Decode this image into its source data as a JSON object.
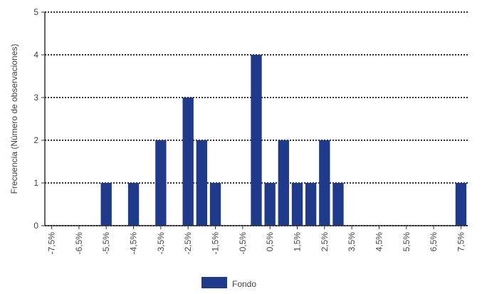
{
  "chart_data": {
    "type": "histogram",
    "ylabel": "Frecuencia (Número de observaciones)",
    "bins": [
      -7.75,
      -7.25,
      -6.75,
      -6.25,
      -5.75,
      -5.25,
      -4.75,
      -4.25,
      -3.75,
      -3.25,
      -2.75,
      -2.25,
      -1.75,
      -1.25,
      -0.75,
      -0.25,
      0.25,
      0.75,
      1.25,
      1.75,
      2.25,
      2.75,
      3.25,
      3.75,
      4.25,
      4.75,
      5.25,
      5.75,
      6.25,
      6.75,
      7.25,
      7.75
    ],
    "series": [
      {
        "name": "Fondo",
        "color": "#1f3a8a",
        "values": [
          0,
          0,
          0,
          0,
          1,
          0,
          1,
          0,
          2,
          0,
          3,
          2,
          1,
          0,
          0,
          4,
          1,
          2,
          1,
          1,
          2,
          1,
          0,
          0,
          0,
          0,
          0,
          0,
          0,
          0,
          1
        ]
      }
    ],
    "xlim": [
      -7.75,
      7.75
    ],
    "xticks": [
      {
        "value": -7.5,
        "label": "-7,5%"
      },
      {
        "value": -6.5,
        "label": "-6,5%"
      },
      {
        "value": -5.5,
        "label": "-5,5%"
      },
      {
        "value": -4.5,
        "label": "-4,5%"
      },
      {
        "value": -3.5,
        "label": "-3,5%"
      },
      {
        "value": -2.5,
        "label": "-2,5%"
      },
      {
        "value": -1.5,
        "label": "-1,5%"
      },
      {
        "value": -0.5,
        "label": "-0,5%"
      },
      {
        "value": 0.5,
        "label": "0,5%"
      },
      {
        "value": 1.5,
        "label": "1,5%"
      },
      {
        "value": 2.5,
        "label": "2,5%"
      },
      {
        "value": 3.5,
        "label": "3,5%"
      },
      {
        "value": 4.5,
        "label": "4,5%"
      },
      {
        "value": 5.5,
        "label": "5,5%"
      },
      {
        "value": 6.5,
        "label": "6,5%"
      },
      {
        "value": 7.5,
        "label": "7,5%"
      }
    ],
    "ylim": [
      0,
      5
    ],
    "yticks": [
      0,
      1,
      2,
      3,
      4,
      5
    ],
    "grid": true
  }
}
